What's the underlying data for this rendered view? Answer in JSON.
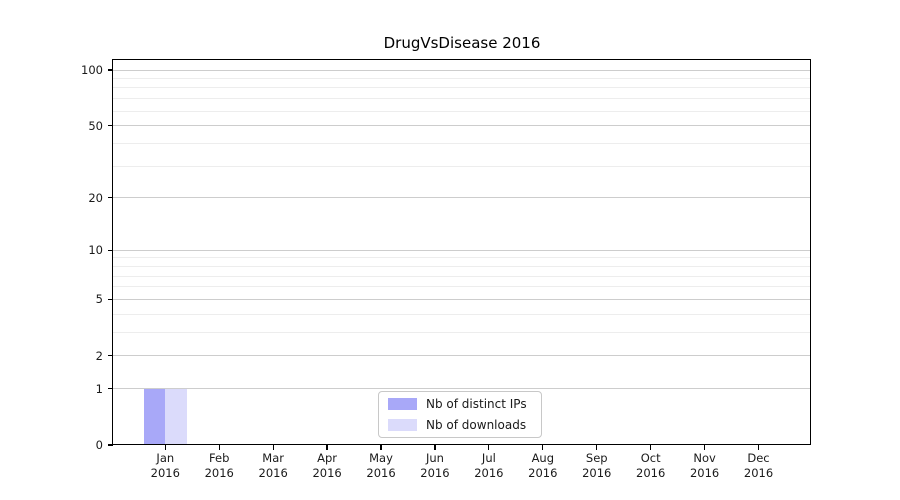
{
  "chart_data": {
    "type": "bar",
    "title": "DrugVsDisease 2016",
    "categories": [
      "Jan",
      "Feb",
      "Mar",
      "Apr",
      "May",
      "Jun",
      "Jul",
      "Aug",
      "Sep",
      "Oct",
      "Nov",
      "Dec"
    ],
    "category_year_line": "2016",
    "series": [
      {
        "name": "Nb of distinct IPs",
        "color": "#a8a8f8",
        "values": [
          1,
          0,
          0,
          0,
          0,
          0,
          0,
          0,
          0,
          0,
          0,
          0
        ]
      },
      {
        "name": "Nb of downloads",
        "color": "#dbdbfb",
        "values": [
          1,
          0,
          0,
          0,
          0,
          0,
          0,
          0,
          0,
          0,
          0,
          0
        ]
      }
    ],
    "xlabel": "",
    "ylabel": "",
    "yscale": "log1p",
    "ylim": [
      0,
      114
    ],
    "yticks": [
      0,
      1,
      2,
      5,
      10,
      20,
      50,
      100
    ],
    "yticks_minor": [
      3,
      4,
      6,
      7,
      8,
      9,
      30,
      40,
      60,
      70,
      80,
      90
    ],
    "grid": "horizontal",
    "legend_position": "bottom-center",
    "colors": {
      "grid_major": "#cdcdcd",
      "grid_minor": "#ededed",
      "spine": "#000000",
      "background": "#ffffff",
      "legend_border": "#c8c8c8",
      "text": "#000000"
    }
  }
}
